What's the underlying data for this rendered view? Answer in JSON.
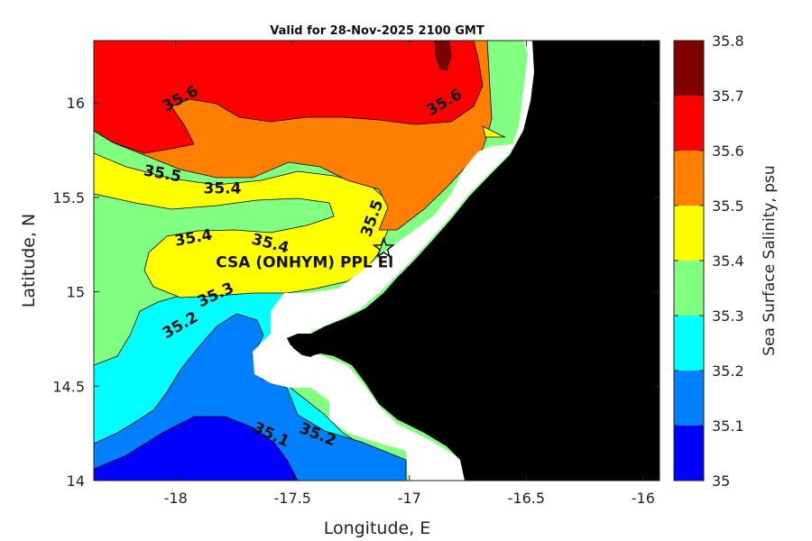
{
  "title": "Valid for 28-Nov-2025 2100 GMT",
  "chart_data": {
    "type": "contour-map",
    "title": "Valid for 28-Nov-2025 2100 GMT",
    "xlabel": "Longitude, E",
    "ylabel": "Latitude, N",
    "xlim": [
      -18.35,
      -15.93
    ],
    "ylim": [
      14.0,
      16.33
    ],
    "x_ticks": [
      "-18",
      "-17.5",
      "-17",
      "-16.5",
      "-16"
    ],
    "y_ticks": [
      "14",
      "14.5",
      "15",
      "15.5",
      "16"
    ],
    "colorbar": {
      "label": "Sea Surface Salinity, psu",
      "ticks": [
        "35",
        "35.1",
        "35.2",
        "35.3",
        "35.4",
        "35.5",
        "35.6",
        "35.7",
        "35.8"
      ],
      "levels": [
        {
          "min": 35.0,
          "max": 35.1,
          "color": "#0000ff"
        },
        {
          "min": 35.1,
          "max": 35.2,
          "color": "#0080ff"
        },
        {
          "min": 35.2,
          "max": 35.3,
          "color": "#00ffff"
        },
        {
          "min": 35.3,
          "max": 35.4,
          "color": "#80ff80"
        },
        {
          "min": 35.4,
          "max": 35.5,
          "color": "#ffff00"
        },
        {
          "min": 35.5,
          "max": 35.6,
          "color": "#ff8000"
        },
        {
          "min": 35.6,
          "max": 35.7,
          "color": "#ff0000"
        },
        {
          "min": 35.7,
          "max": 35.8,
          "color": "#800000"
        }
      ]
    },
    "contour_labels": [
      {
        "text": "35.6",
        "lon": -17.97,
        "lat": 16.0
      },
      {
        "text": "35.6",
        "lon": -16.84,
        "lat": 15.98
      },
      {
        "text": "35.5",
        "lon": -18.06,
        "lat": 15.6
      },
      {
        "text": "35.4",
        "lon": -17.8,
        "lat": 15.52
      },
      {
        "text": "35.5",
        "lon": -17.14,
        "lat": 15.38
      },
      {
        "text": "35.4",
        "lon": -17.92,
        "lat": 15.26
      },
      {
        "text": "35.4",
        "lon": -17.6,
        "lat": 15.23
      },
      {
        "text": "35.3",
        "lon": -17.82,
        "lat": 14.96
      },
      {
        "text": "35.2",
        "lon": -17.97,
        "lat": 14.8
      },
      {
        "text": "35.1",
        "lon": -17.6,
        "lat": 14.22
      },
      {
        "text": "35.2",
        "lon": -17.4,
        "lat": 14.22
      }
    ],
    "station": {
      "name": "CSA (ONHYM) PPL El",
      "lon": -17.11,
      "lat": 15.23
    }
  }
}
